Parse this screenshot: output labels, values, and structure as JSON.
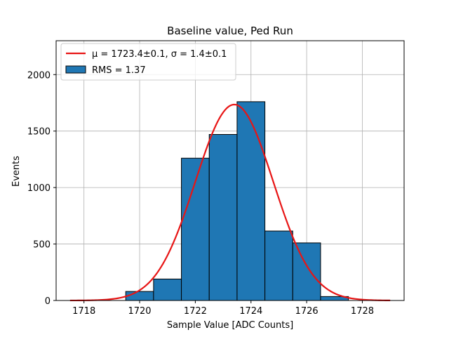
{
  "chart_data": {
    "type": "bar",
    "title": "Baseline value, Ped Run",
    "xlabel": "Sample Value [ADC Counts]",
    "ylabel": "Events",
    "xlim": [
      1717,
      1729.5
    ],
    "ylim": [
      0,
      2300
    ],
    "xticks": [
      1718,
      1720,
      1722,
      1724,
      1726,
      1728
    ],
    "yticks": [
      0,
      500,
      1000,
      1500,
      2000
    ],
    "grid": true,
    "legend_position": "top-left",
    "bins": [
      {
        "left": 1719.5,
        "right": 1720.5,
        "value": 80
      },
      {
        "left": 1720.5,
        "right": 1721.5,
        "value": 190
      },
      {
        "left": 1721.5,
        "right": 1722.5,
        "value": 1260
      },
      {
        "left": 1722.5,
        "right": 1723.5,
        "value": 1470
      },
      {
        "left": 1723.5,
        "right": 1724.5,
        "value": 1760
      },
      {
        "left": 1724.5,
        "right": 1725.5,
        "value": 615
      },
      {
        "left": 1725.5,
        "right": 1726.5,
        "value": 510
      },
      {
        "left": 1726.5,
        "right": 1727.5,
        "value": 35
      }
    ],
    "fit": {
      "mu": 1723.4,
      "sigma": 1.4,
      "amplitude": 1735,
      "x_range": [
        1717.5,
        1729
      ]
    },
    "legend": [
      {
        "kind": "line",
        "label_prefix": "μ = 1723.4±0.1, ",
        "label_suffix": "σ = 1.4±0.1"
      },
      {
        "kind": "patch",
        "label": "RMS = 1.37"
      }
    ],
    "colors": {
      "bar": "#1f77b4",
      "bar_edge": "#000000",
      "fit": "#e81515",
      "grid": "#b0b0b0"
    }
  }
}
